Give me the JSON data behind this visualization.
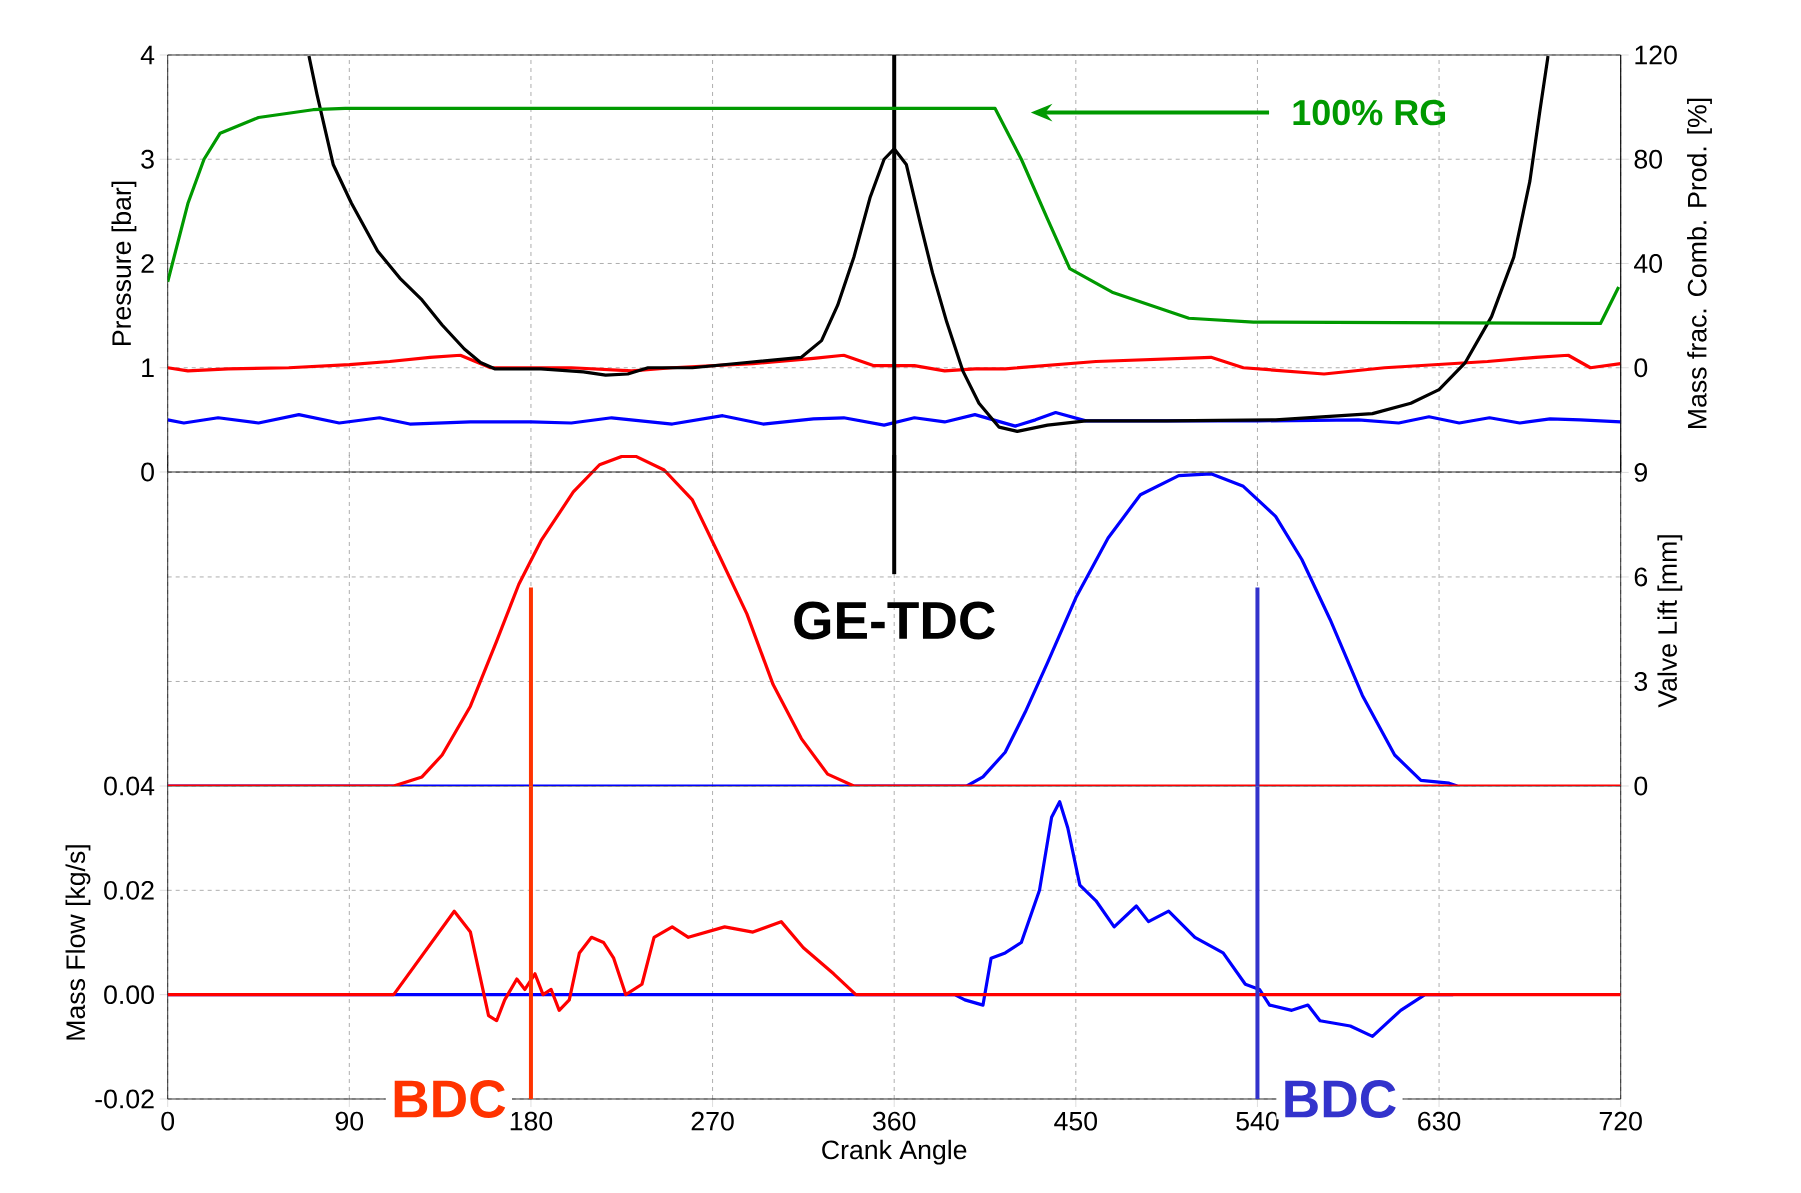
{
  "chart_data": [
    {
      "type": "line",
      "ylabel": "Pressure [bar]",
      "y2label": "Mass frac. Comb. Prod. [%]",
      "xlim": [
        0,
        720
      ],
      "xticks": [
        0,
        90,
        180,
        270,
        360,
        450,
        540,
        630,
        720
      ],
      "ylim": [
        0,
        4
      ],
      "yticks": [
        0,
        1,
        2,
        3,
        4
      ],
      "y2lim": [
        -40,
        120
      ],
      "y2ticks": [
        0,
        40,
        80,
        120
      ],
      "grid": true,
      "tick_labels": "y",
      "annotations": [
        "100% RG"
      ],
      "ref_lines": [
        {
          "axis": "x",
          "value": 360,
          "color": "#000000"
        }
      ],
      "series": [
        {
          "color": "#ff0000",
          "x": [
            0,
            10,
            30,
            60,
            90,
            110,
            130,
            145,
            160,
            200,
            230,
            250,
            290,
            320,
            335,
            350,
            370,
            385,
            400,
            415,
            460,
            517,
            533,
            573,
            603,
            654,
            678,
            694,
            705,
            720
          ],
          "values": [
            1.0,
            0.97,
            0.99,
            1.0,
            1.03,
            1.06,
            1.1,
            1.12,
            1.0,
            1.0,
            0.97,
            1.0,
            1.04,
            1.09,
            1.12,
            1.02,
            1.02,
            0.97,
            0.99,
            0.99,
            1.06,
            1.1,
            1.0,
            0.94,
            1.0,
            1.06,
            1.1,
            1.12,
            1.0,
            1.04
          ]
        },
        {
          "color": "#0000ff",
          "x": [
            0,
            8,
            25,
            45,
            65,
            85,
            105,
            120,
            150,
            180,
            200,
            220,
            250,
            275,
            295,
            320,
            335,
            355,
            370,
            385,
            400,
            420,
            430,
            440,
            455,
            500,
            540,
            590,
            610,
            625,
            640,
            655,
            670,
            685,
            700,
            720
          ],
          "values": [
            0.5,
            0.47,
            0.52,
            0.47,
            0.55,
            0.47,
            0.52,
            0.46,
            0.48,
            0.48,
            0.47,
            0.52,
            0.46,
            0.54,
            0.46,
            0.51,
            0.52,
            0.45,
            0.52,
            0.48,
            0.55,
            0.44,
            0.5,
            0.57,
            0.49,
            0.49,
            0.49,
            0.5,
            0.47,
            0.53,
            0.47,
            0.52,
            0.47,
            0.51,
            0.5,
            0.48
          ]
        },
        {
          "color": "#000000",
          "x": [
            70,
            74,
            82,
            91,
            104,
            115,
            126,
            136,
            147,
            155,
            162,
            185,
            206,
            217,
            228,
            238,
            260,
            287,
            314,
            324,
            332,
            340,
            348,
            355,
            360,
            366,
            373,
            379,
            386,
            394,
            402,
            412,
            421,
            436,
            455,
            495,
            549,
            597,
            616,
            630,
            643,
            656,
            667,
            675,
            680,
            684
          ],
          "values": [
            3.99,
            3.62,
            2.95,
            2.58,
            2.12,
            1.86,
            1.65,
            1.41,
            1.18,
            1.05,
            0.99,
            0.99,
            0.96,
            0.93,
            0.94,
            1.0,
            1.0,
            1.05,
            1.1,
            1.26,
            1.6,
            2.06,
            2.63,
            3.0,
            3.1,
            2.95,
            2.38,
            1.91,
            1.44,
            0.97,
            0.66,
            0.43,
            0.39,
            0.45,
            0.49,
            0.49,
            0.5,
            0.56,
            0.66,
            0.79,
            1.05,
            1.49,
            2.06,
            2.79,
            3.47,
            3.99
          ]
        },
        {
          "color": "#009900",
          "axis": "y2",
          "x": [
            0,
            10,
            18,
            26,
            45,
            72,
            88,
            410,
            423,
            436,
            447,
            468,
            506,
            538,
            710,
            719
          ],
          "values": [
            33,
            63,
            80,
            90,
            96,
            99,
            99.5,
            99.5,
            80,
            57,
            38,
            29,
            19,
            17.5,
            17,
            31
          ]
        }
      ]
    },
    {
      "type": "line",
      "y2label": "Valve Lift  [mm]",
      "xlim": [
        0,
        720
      ],
      "xticks": [
        0,
        90,
        180,
        270,
        360,
        450,
        540,
        630,
        720
      ],
      "y2lim": [
        0,
        9.5
      ],
      "y2ticks": [
        0,
        3,
        6,
        9
      ],
      "grid": true,
      "tick_labels": "y",
      "ref_lines": [
        {
          "axis": "x",
          "value": 360,
          "label": "GE-TDC",
          "color": "#000000"
        },
        {
          "axis": "x",
          "value": 180,
          "color": "#ff3300"
        },
        {
          "axis": "x",
          "value": 540,
          "color": "#3333cc"
        }
      ],
      "series": [
        {
          "color": "#0000ff",
          "axis": "y2",
          "x": [
            0,
            396,
            404,
            415,
            425,
            436,
            450,
            466,
            482,
            501,
            517,
            533,
            549,
            562,
            576,
            592,
            608,
            621,
            635,
            639
          ],
          "values": [
            0,
            0,
            0.26,
            0.97,
            2.13,
            3.54,
            5.4,
            7.12,
            8.36,
            8.91,
            8.96,
            8.6,
            7.74,
            6.5,
            4.78,
            2.6,
            0.89,
            0.16,
            0.08,
            0
          ]
        },
        {
          "color": "#ff0000",
          "axis": "y2",
          "x": [
            0,
            112,
            126,
            136,
            150,
            163,
            174,
            185,
            201,
            214,
            225,
            232,
            246,
            260,
            273,
            287,
            300,
            314,
            327,
            340,
            720
          ],
          "values": [
            0,
            0,
            0.26,
            0.89,
            2.29,
            4.16,
            5.79,
            7.04,
            8.44,
            9.22,
            9.46,
            9.46,
            9.07,
            8.21,
            6.65,
            4.94,
            2.91,
            1.36,
            0.34,
            0,
            0
          ]
        }
      ]
    },
    {
      "type": "line",
      "xlabel": "Crank Angle",
      "ylabel": "Mass Flow  [kg/s]",
      "xlim": [
        0,
        720
      ],
      "xticks": [
        0,
        90,
        180,
        270,
        360,
        450,
        540,
        630,
        720
      ],
      "ylim": [
        -0.02,
        0.04
      ],
      "yticks": [
        {
          "value": -0.02,
          "label": "-0.02"
        },
        {
          "value": 0,
          "label": "0.00"
        },
        {
          "value": 0.02,
          "label": "0.02"
        },
        {
          "value": 0.04,
          "label": "0.04"
        }
      ],
      "grid": true,
      "ref_lines": [
        {
          "axis": "x",
          "value": 180,
          "label": "BDC",
          "color": "#ff3300"
        },
        {
          "axis": "x",
          "value": 540,
          "label": "BDC",
          "color": "#3333cc"
        }
      ],
      "series": [
        {
          "color": "#0000ff",
          "x": [
            0,
            390,
            395,
            404,
            408,
            415,
            423,
            432,
            438,
            442,
            446,
            452,
            460,
            469,
            480,
            486,
            496,
            509,
            523,
            534,
            541,
            546,
            557,
            565,
            571,
            586,
            597,
            611,
            623,
            637
          ],
          "values": [
            0,
            0,
            -0.001,
            -0.002,
            0.007,
            0.008,
            0.01,
            0.02,
            0.034,
            0.037,
            0.032,
            0.021,
            0.018,
            0.013,
            0.017,
            0.014,
            0.016,
            0.011,
            0.008,
            0.002,
            0.001,
            -0.002,
            -0.003,
            -0.002,
            -0.005,
            -0.006,
            -0.008,
            -0.003,
            0,
            0
          ]
        },
        {
          "color": "#ff0000",
          "x": [
            0,
            112,
            142,
            150,
            159,
            163,
            167,
            173,
            177,
            182,
            186,
            190,
            194,
            199,
            204,
            210,
            216,
            221,
            227,
            235,
            241,
            250,
            258,
            276,
            290,
            304,
            315,
            330,
            341,
            720
          ],
          "values": [
            0,
            0,
            0.016,
            0.012,
            -0.004,
            -0.005,
            -0.001,
            0.003,
            0.001,
            0.004,
            0,
            0.001,
            -0.003,
            -0.001,
            0.008,
            0.011,
            0.01,
            0.007,
            0,
            0.002,
            0.011,
            0.013,
            0.011,
            0.013,
            0.012,
            0.014,
            0.009,
            0.004,
            0,
            0
          ]
        }
      ]
    }
  ]
}
